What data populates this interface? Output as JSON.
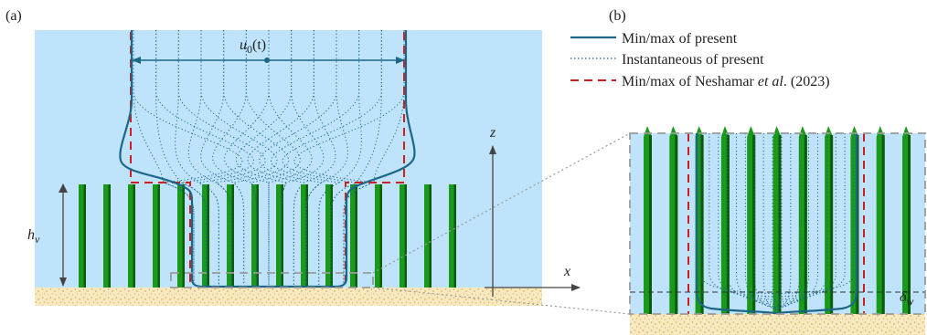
{
  "panels": {
    "a": {
      "label": "(a)"
    },
    "b": {
      "label": "(b)"
    }
  },
  "annotations": {
    "u0_base": "u",
    "u0_sub": "0",
    "u0_arg": "(t)",
    "hv_base": "h",
    "hv_sub": "v",
    "z_axis": "z",
    "x_axis": "x",
    "delta_base": "δ",
    "delta_sub": "w"
  },
  "legend": {
    "minmax_present": "Min/max of present",
    "instantaneous_present": "Instantaneous of present",
    "nesh_prefix": "Min/max of Neshamar ",
    "nesh_italic": "et al",
    "nesh_suffix": ". (2023)"
  },
  "colors": {
    "water": "#bfe3fb",
    "stem": "#1a9a1a",
    "stem_dark": "#0d5c0d",
    "present_line": "#1c6688",
    "reference_line": "#cc1f1f",
    "sediment": "#f6e3b0"
  }
}
